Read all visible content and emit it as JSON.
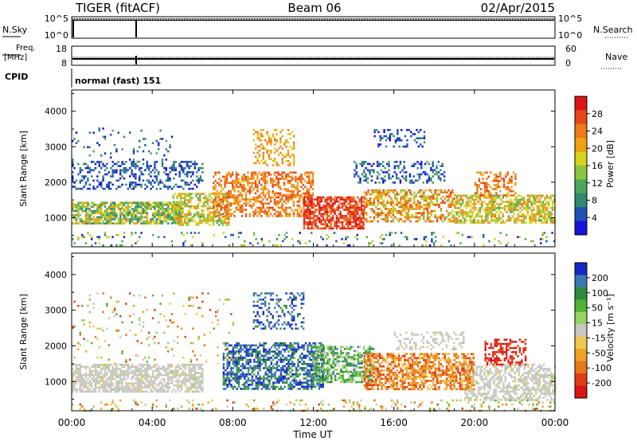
{
  "header": {
    "radar": "TIGER (fitACF)",
    "beam": "Beam 06",
    "date": "02/Apr/2015"
  },
  "top_panels": {
    "nsky_label": "N.Sky",
    "nsearch_label": "N.Search",
    "noise_ticks": [
      "10^5",
      "10^0"
    ],
    "freq_label_line1": "Freq.",
    "freq_label_line2": "[MHz]",
    "freq_ticks": [
      "18",
      "8"
    ],
    "nave_label": "Nave",
    "nave_ticks": [
      "60",
      "0"
    ],
    "cpid_label": "CPID",
    "cpid_text": "normal (fast) 151"
  },
  "chart_data": [
    {
      "type": "heatmap",
      "name": "power",
      "ylabel": "Slant Range [km]",
      "yticks": [
        1000,
        2000,
        3000,
        4000
      ],
      "ylim": [
        180,
        4600
      ],
      "xlim": [
        0,
        24
      ],
      "colorbar": {
        "label": "Power [dB]",
        "ticks": [
          "4",
          "8",
          "12",
          "16",
          "20",
          "24",
          "28"
        ],
        "range": [
          0,
          32
        ],
        "colors": [
          "#1414dc",
          "#2050b4",
          "#2e8a6e",
          "#4aa85a",
          "#8cc43c",
          "#d6d21a",
          "#f0a010",
          "#f07818",
          "#e84818",
          "#dc1414"
        ]
      },
      "bands": [
        {
          "t0": 0.0,
          "t1": 5.5,
          "r0": 850,
          "r1": 1450,
          "p": 0.75,
          "v": [
            0.2,
            0.7
          ]
        },
        {
          "t0": 0.0,
          "t1": 6.5,
          "r0": 1800,
          "r1": 2600,
          "p": 0.35,
          "v": [
            0.0,
            0.3
          ]
        },
        {
          "t0": 0.0,
          "t1": 24.0,
          "r0": 200,
          "r1": 600,
          "p": 0.12,
          "v": [
            0.0,
            0.6
          ]
        },
        {
          "t0": 0.0,
          "t1": 5.0,
          "r0": 2600,
          "r1": 3600,
          "p": 0.08,
          "v": [
            0.0,
            0.4
          ]
        },
        {
          "t0": 5.0,
          "t1": 7.8,
          "r0": 800,
          "r1": 1700,
          "p": 0.65,
          "v": [
            0.35,
            0.75
          ]
        },
        {
          "t0": 7.0,
          "t1": 12.0,
          "r0": 1050,
          "r1": 2300,
          "p": 0.55,
          "v": [
            0.6,
            0.9
          ]
        },
        {
          "t0": 9.0,
          "t1": 11.0,
          "r0": 2500,
          "r1": 3500,
          "p": 0.35,
          "v": [
            0.5,
            0.8
          ]
        },
        {
          "t0": 11.5,
          "t1": 14.5,
          "r0": 700,
          "r1": 1600,
          "p": 0.75,
          "v": [
            0.75,
            1.0
          ]
        },
        {
          "t0": 14.5,
          "t1": 19.0,
          "r0": 900,
          "r1": 1800,
          "p": 0.6,
          "v": [
            0.4,
            0.9
          ]
        },
        {
          "t0": 19.0,
          "t1": 24.0,
          "r0": 850,
          "r1": 1650,
          "p": 0.65,
          "v": [
            0.35,
            0.75
          ]
        },
        {
          "t0": 14.0,
          "t1": 18.5,
          "r0": 2000,
          "r1": 2600,
          "p": 0.35,
          "v": [
            0.0,
            0.35
          ]
        },
        {
          "t0": 15.0,
          "t1": 17.5,
          "r0": 3000,
          "r1": 3500,
          "p": 0.25,
          "v": [
            0.0,
            0.3
          ]
        },
        {
          "t0": 20.0,
          "t1": 22.0,
          "r0": 1600,
          "r1": 2300,
          "p": 0.45,
          "v": [
            0.6,
            0.9
          ]
        }
      ]
    },
    {
      "type": "heatmap",
      "name": "velocity",
      "ylabel": "Slant Range [km]",
      "yticks": [
        1000,
        2000,
        3000,
        4000
      ],
      "ylim": [
        180,
        4600
      ],
      "xlim": [
        0,
        24
      ],
      "xticks": [
        "00:00",
        "04:00",
        "08:00",
        "12:00",
        "16:00",
        "20:00",
        "00:00"
      ],
      "xlabel": "Time UT",
      "colorbar": {
        "label": "Velocity [m s⁻¹]",
        "ticks": [
          "200",
          "100",
          "50",
          "15",
          "-15",
          "-50",
          "-100",
          "-200"
        ],
        "colors": [
          "#1428c8",
          "#3c78b4",
          "#2e8a3c",
          "#50b432",
          "#96d264",
          "#c8c8c0",
          "#f0c850",
          "#f0a020",
          "#e87818",
          "#e03c14",
          "#dc1414"
        ]
      },
      "bands": [
        {
          "t0": 0.0,
          "t1": 6.5,
          "r0": 700,
          "r1": 1500,
          "p": 0.7,
          "v": [
            0.45,
            0.55
          ]
        },
        {
          "t0": 19.5,
          "t1": 24.0,
          "r0": 500,
          "r1": 1500,
          "p": 0.6,
          "v": [
            0.45,
            0.55
          ]
        },
        {
          "t0": 7.5,
          "t1": 12.5,
          "r0": 800,
          "r1": 2100,
          "p": 0.6,
          "v": [
            0.0,
            0.3
          ]
        },
        {
          "t0": 12.0,
          "t1": 15.0,
          "r0": 1000,
          "r1": 2000,
          "p": 0.6,
          "v": [
            0.15,
            0.5
          ]
        },
        {
          "t0": 14.5,
          "t1": 20.0,
          "r0": 800,
          "r1": 1800,
          "p": 0.65,
          "v": [
            0.6,
            0.9
          ]
        },
        {
          "t0": 20.5,
          "t1": 22.5,
          "r0": 1500,
          "r1": 2200,
          "p": 0.5,
          "v": [
            0.85,
            1.0
          ]
        },
        {
          "t0": 9.0,
          "t1": 11.5,
          "r0": 2500,
          "r1": 3500,
          "p": 0.3,
          "v": [
            0.0,
            0.25
          ]
        },
        {
          "t0": 0.0,
          "t1": 24.0,
          "r0": 200,
          "r1": 500,
          "p": 0.15,
          "v": [
            0.3,
            0.9
          ]
        },
        {
          "t0": 0.0,
          "t1": 8.0,
          "r0": 1500,
          "r1": 3500,
          "p": 0.06,
          "v": [
            0.3,
            0.9
          ]
        },
        {
          "t0": 16.0,
          "t1": 19.5,
          "r0": 1900,
          "r1": 2400,
          "p": 0.3,
          "v": [
            0.45,
            0.55
          ]
        }
      ]
    }
  ]
}
